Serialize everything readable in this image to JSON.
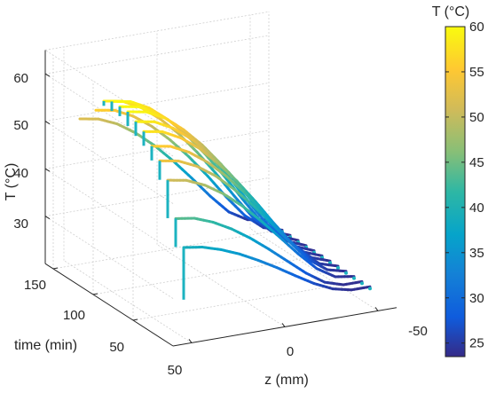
{
  "chart_data": {
    "type": "line",
    "view": "3d",
    "x_axis": {
      "label": "z (mm)",
      "ticks": [
        "50",
        "0",
        "-50"
      ],
      "range": [
        60,
        -60
      ]
    },
    "y_axis": {
      "label": "time (min)",
      "ticks": [
        "50",
        "100",
        "150"
      ],
      "range": [
        0,
        160
      ]
    },
    "z_axis": {
      "label": "T (°C)",
      "ticks": [
        "30",
        "40",
        "50",
        "60"
      ],
      "range": [
        20,
        65
      ]
    },
    "colorbar": {
      "label": "T (°C)",
      "ticks": [
        "25",
        "30",
        "35",
        "40",
        "45",
        "50",
        "55",
        "60"
      ],
      "range": [
        23.5,
        60
      ],
      "colormap": "parula"
    },
    "grid": true,
    "series": [
      {
        "time": 10,
        "z": [
          50,
          40,
          30,
          20,
          10,
          0,
          -10,
          -20,
          -30,
          -40,
          -50
        ],
        "T": [
          39,
          38.4,
          37.2,
          35.6,
          33.6,
          31.4,
          29.0,
          26.7,
          24.9,
          24.0,
          24.0
        ],
        "start_T": 28
      },
      {
        "time": 20,
        "z": [
          50,
          40,
          30,
          20,
          10,
          0,
          -10,
          -20,
          -30,
          -40,
          -50
        ],
        "T": [
          44,
          43.4,
          41.9,
          39.8,
          37.2,
          34.2,
          31.0,
          27.8,
          25.2,
          24.0,
          24.0
        ],
        "start_T": 38
      },
      {
        "time": 30,
        "z": [
          50,
          40,
          30,
          20,
          10,
          0,
          -10,
          -20,
          -30,
          -40,
          -50
        ],
        "T": [
          51,
          50.3,
          48.6,
          46.1,
          42.9,
          39.1,
          35.0,
          30.8,
          27.0,
          24.6,
          24.0
        ],
        "start_T": 43
      },
      {
        "time": 40,
        "z": [
          50,
          40,
          30,
          20,
          10,
          0,
          -10,
          -20,
          -30,
          -40,
          -50
        ],
        "T": [
          54,
          53.3,
          51.5,
          48.8,
          45.3,
          41.3,
          36.8,
          32.1,
          27.8,
          25.0,
          24.0
        ],
        "start_T": 50
      },
      {
        "time": 50,
        "z": [
          50,
          40,
          30,
          20,
          10,
          0,
          -10,
          -20,
          -30,
          -40,
          -50
        ],
        "T": [
          56,
          55.3,
          53.4,
          50.6,
          47.0,
          42.8,
          38.1,
          33.0,
          28.4,
          25.2,
          24.0
        ],
        "start_T": 53
      },
      {
        "time": 60,
        "z": [
          50,
          40,
          30,
          20,
          10,
          0,
          -10,
          -20,
          -30,
          -40,
          -50
        ],
        "T": [
          58,
          57.3,
          55.3,
          52.4,
          48.6,
          44.2,
          39.2,
          33.9,
          28.9,
          25.4,
          24.0
        ],
        "start_T": 55
      },
      {
        "time": 70,
        "z": [
          50,
          40,
          30,
          20,
          10,
          0,
          -10,
          -20,
          -30,
          -40,
          -50
        ],
        "T": [
          59,
          58.3,
          56.3,
          53.3,
          49.5,
          44.9,
          39.8,
          34.3,
          29.1,
          25.5,
          24.0
        ],
        "start_T": 56
      },
      {
        "time": 80,
        "z": [
          50,
          40,
          30,
          20,
          10,
          0,
          -10,
          -20,
          -30,
          -40,
          -50
        ],
        "T": [
          60,
          59.3,
          57.3,
          54.2,
          50.3,
          45.6,
          40.4,
          34.8,
          29.4,
          25.6,
          24.0
        ],
        "start_T": 57
      },
      {
        "time": 90,
        "z": [
          50,
          40,
          30,
          20,
          10,
          0,
          -10,
          -20,
          -30,
          -40,
          -50
        ],
        "T": [
          60,
          59.3,
          57.3,
          54.2,
          50.3,
          45.6,
          40.4,
          34.8,
          29.4,
          25.6,
          24.0
        ],
        "start_T": 58
      },
      {
        "time": 100,
        "z": [
          50,
          40,
          30,
          20,
          10,
          0,
          -10,
          -20,
          -30,
          -40,
          -50
        ],
        "T": [
          60,
          59.3,
          57.3,
          54.2,
          50.3,
          45.6,
          40.4,
          34.8,
          29.4,
          25.6,
          24.0
        ],
        "start_T": 58
      },
      {
        "time": 110,
        "z": [
          50,
          40,
          30,
          20,
          10,
          0,
          -10,
          -20,
          -30,
          -40,
          -50
        ],
        "T": [
          59,
          58.3,
          56.3,
          53.3,
          49.5,
          44.9,
          39.8,
          34.3,
          29.1,
          25.5,
          24.0
        ],
        "start_T": 58
      },
      {
        "time": 120,
        "z": [
          50,
          40,
          30,
          20,
          10,
          0,
          -10,
          -20,
          -30,
          -40,
          -50
        ],
        "T": [
          56,
          55.3,
          53.4,
          50.6,
          47.0,
          42.8,
          38.1,
          33.0,
          28.4,
          25.2,
          24.0
        ],
        "start_T": 56
      },
      {
        "time": 140,
        "z": [
          50,
          40,
          30,
          20,
          10,
          0,
          -10,
          -20,
          -30,
          -40,
          -50
        ],
        "T": [
          52,
          51.3,
          49.6,
          47.0,
          43.7,
          39.8,
          35.5,
          31.0,
          27.0,
          24.7,
          24.0
        ],
        "start_T": 52
      }
    ]
  }
}
